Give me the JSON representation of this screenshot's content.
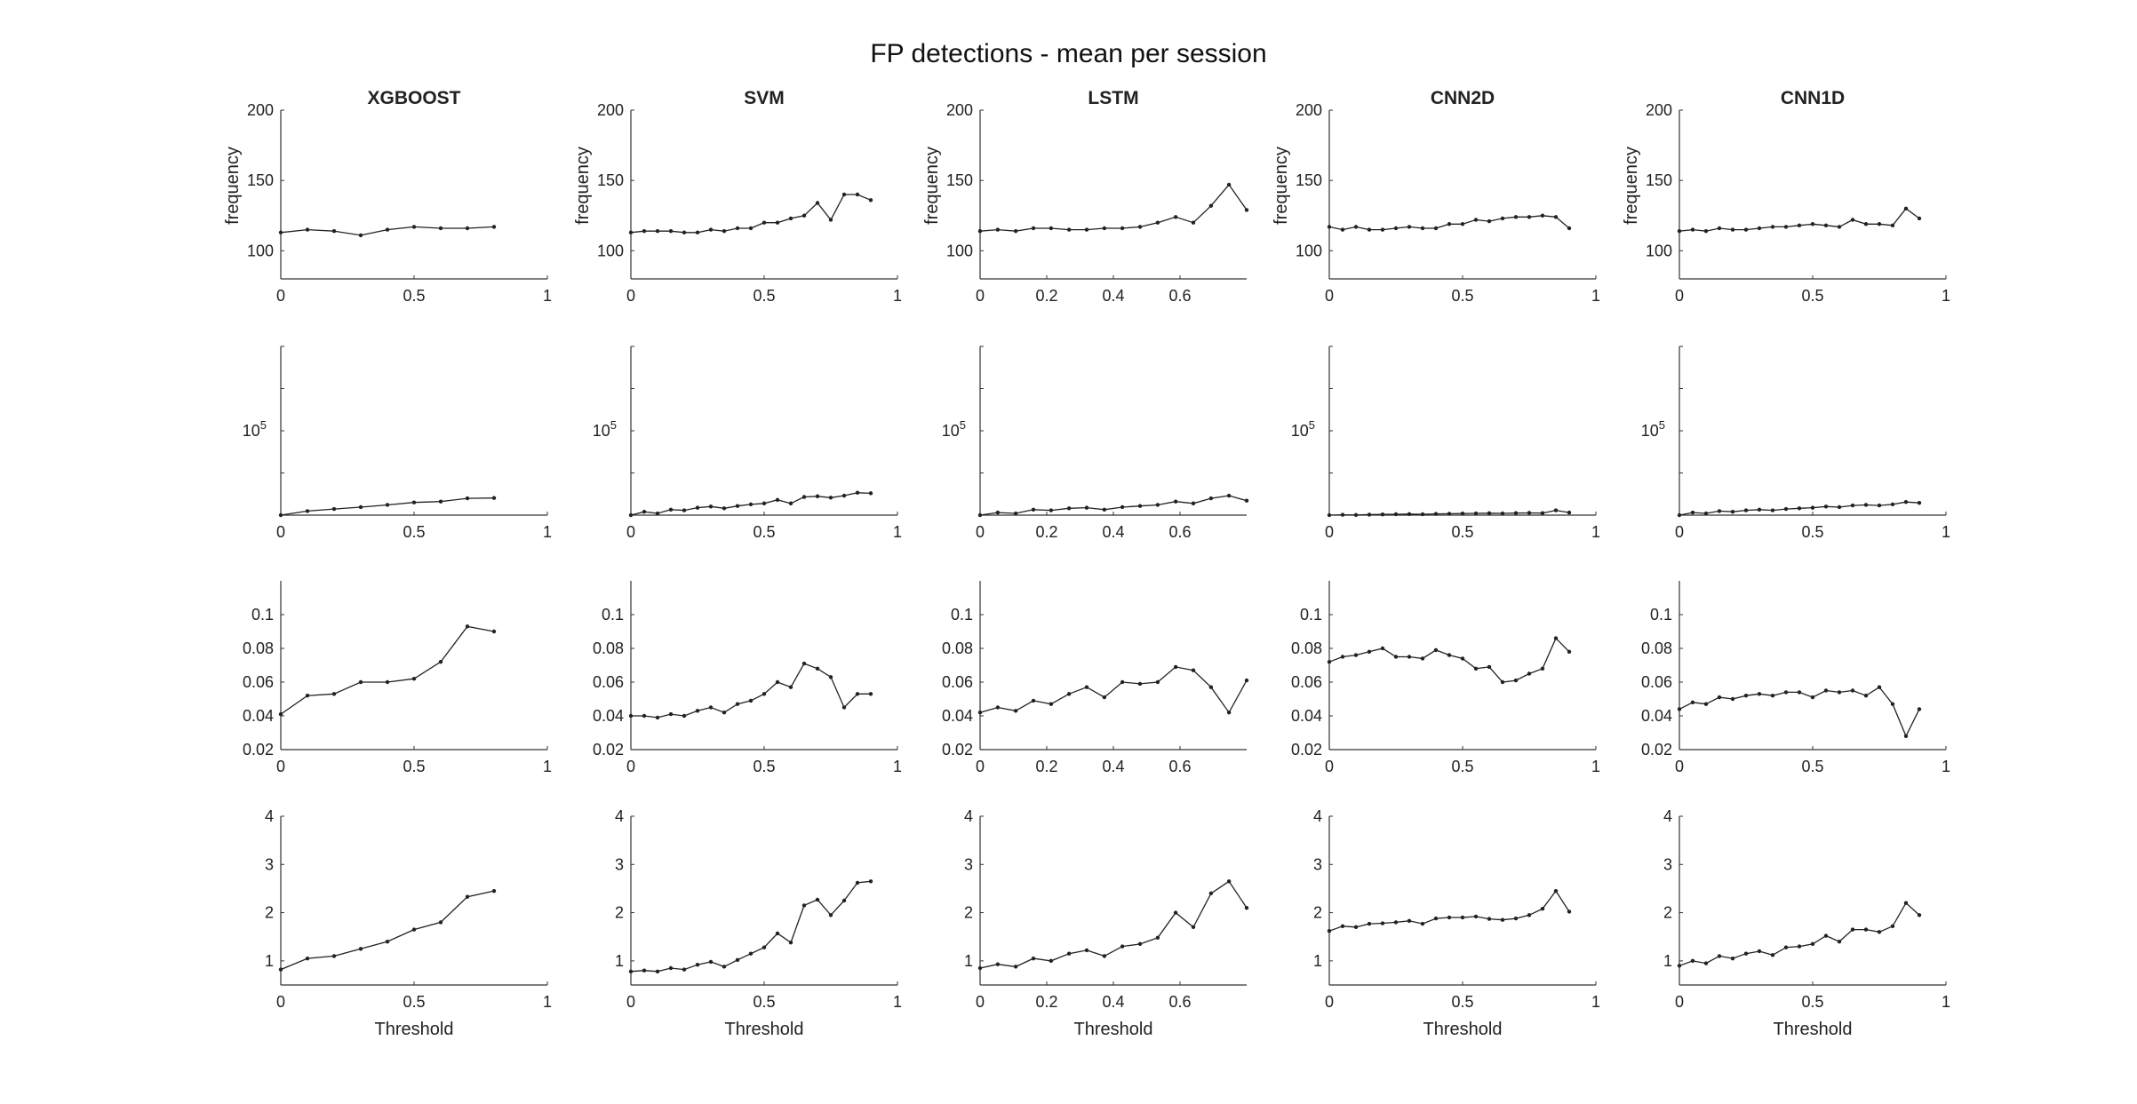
{
  "figure": {
    "title": "FP detections - mean per session"
  },
  "chart_data": {
    "type": "line",
    "title": "FP detections - mean per session",
    "columns": [
      "XGBOOST",
      "SVM",
      "LSTM",
      "CNN2D",
      "CNN1D"
    ],
    "rows": [
      {
        "ylabel": "frequency",
        "yscale": "linear",
        "ylim": [
          80,
          200
        ],
        "yticks": [
          "100",
          "150",
          "200"
        ],
        "xlabel": ""
      },
      {
        "ylabel": "",
        "yscale": "log",
        "ylim": [
          1000,
          10000000
        ],
        "yticks": [
          "10^5"
        ],
        "xlabel": ""
      },
      {
        "ylabel": "",
        "yscale": "linear",
        "ylim": [
          0.02,
          0.12
        ],
        "yticks": [
          "0.02",
          "0.04",
          "0.06",
          "0.08",
          "0.1"
        ],
        "xlabel": ""
      },
      {
        "ylabel": "",
        "yscale": "linear",
        "ylim": [
          0.5,
          4
        ],
        "yticks": [
          "1",
          "2",
          "3",
          "4"
        ],
        "xlabel": "Threshold"
      }
    ],
    "panels": [
      {
        "col": 0,
        "row": 0,
        "xlim": [
          0,
          1
        ],
        "xticks": [
          "0",
          "0.5",
          "1"
        ],
        "x": [
          0,
          0.1,
          0.2,
          0.3,
          0.4,
          0.5,
          0.6,
          0.7,
          0.8
        ],
        "y": [
          113,
          115,
          114,
          111,
          115,
          117,
          116,
          116,
          117
        ]
      },
      {
        "col": 0,
        "row": 1,
        "xlim": [
          0,
          1
        ],
        "xticks": [
          "0",
          "0.5",
          "1"
        ],
        "x": [
          0,
          0.1,
          0.2,
          0.3,
          0.4,
          0.5,
          0.6,
          0.7,
          0.8
        ],
        "y": [
          1000,
          1250,
          1400,
          1550,
          1750,
          2000,
          2100,
          2500,
          2550
        ]
      },
      {
        "col": 0,
        "row": 2,
        "xlim": [
          0,
          1
        ],
        "xticks": [
          "0",
          "0.5",
          "1"
        ],
        "x": [
          0,
          0.1,
          0.2,
          0.3,
          0.4,
          0.5,
          0.6,
          0.7,
          0.8
        ],
        "y": [
          0.041,
          0.052,
          0.053,
          0.06,
          0.06,
          0.062,
          0.072,
          0.093,
          0.09
        ]
      },
      {
        "col": 0,
        "row": 3,
        "xlim": [
          0,
          1
        ],
        "xticks": [
          "0",
          "0.5",
          "1"
        ],
        "x": [
          0,
          0.1,
          0.2,
          0.3,
          0.4,
          0.5,
          0.6,
          0.7,
          0.8
        ],
        "y": [
          0.82,
          1.05,
          1.1,
          1.25,
          1.4,
          1.65,
          1.8,
          2.33,
          2.45
        ]
      },
      {
        "col": 1,
        "row": 0,
        "xlim": [
          0,
          1
        ],
        "xticks": [
          "0",
          "0.5",
          "1"
        ],
        "x": [
          0,
          0.05,
          0.1,
          0.15,
          0.2,
          0.25,
          0.3,
          0.35,
          0.4,
          0.45,
          0.5,
          0.55,
          0.6,
          0.65,
          0.7,
          0.75,
          0.8,
          0.85,
          0.9
        ],
        "y": [
          113,
          114,
          114,
          114,
          113,
          113,
          115,
          114,
          116,
          116,
          120,
          120,
          123,
          125,
          134,
          122,
          140,
          140,
          136
        ]
      },
      {
        "col": 1,
        "row": 1,
        "xlim": [
          0,
          1
        ],
        "xticks": [
          "0",
          "0.5",
          "1"
        ],
        "x": [
          0,
          0.05,
          0.1,
          0.15,
          0.2,
          0.25,
          0.3,
          0.35,
          0.4,
          0.45,
          0.5,
          0.55,
          0.6,
          0.65,
          0.7,
          0.75,
          0.8,
          0.85,
          0.9
        ],
        "y": [
          1000,
          1200,
          1100,
          1350,
          1300,
          1500,
          1600,
          1450,
          1650,
          1800,
          1900,
          2300,
          1900,
          2700,
          2800,
          2600,
          2900,
          3400,
          3300
        ]
      },
      {
        "col": 1,
        "row": 2,
        "xlim": [
          0,
          1
        ],
        "xticks": [
          "0",
          "0.5",
          "1"
        ],
        "x": [
          0,
          0.05,
          0.1,
          0.15,
          0.2,
          0.25,
          0.3,
          0.35,
          0.4,
          0.45,
          0.5,
          0.55,
          0.6,
          0.65,
          0.7,
          0.75,
          0.8,
          0.85,
          0.9
        ],
        "y": [
          0.04,
          0.04,
          0.039,
          0.041,
          0.04,
          0.043,
          0.045,
          0.042,
          0.047,
          0.049,
          0.053,
          0.06,
          0.057,
          0.071,
          0.068,
          0.063,
          0.045,
          0.053,
          0.053
        ]
      },
      {
        "col": 1,
        "row": 3,
        "xlim": [
          0,
          1
        ],
        "xticks": [
          "0",
          "0.5",
          "1"
        ],
        "x": [
          0,
          0.05,
          0.1,
          0.15,
          0.2,
          0.25,
          0.3,
          0.35,
          0.4,
          0.45,
          0.5,
          0.55,
          0.6,
          0.65,
          0.7,
          0.75,
          0.8,
          0.85,
          0.9
        ],
        "y": [
          0.78,
          0.8,
          0.78,
          0.85,
          0.82,
          0.92,
          0.98,
          0.88,
          1.02,
          1.15,
          1.28,
          1.57,
          1.38,
          2.15,
          2.27,
          1.95,
          2.25,
          2.62,
          2.65
        ]
      },
      {
        "col": 2,
        "row": 0,
        "xlim": [
          0,
          0.8
        ],
        "xticks": [
          "0",
          "0.2",
          "0.4",
          "0.6"
        ],
        "x": [
          0,
          0.053,
          0.107,
          0.16,
          0.213,
          0.267,
          0.32,
          0.373,
          0.427,
          0.48,
          0.533,
          0.587,
          0.64,
          0.693,
          0.747,
          0.8
        ],
        "y": [
          114,
          115,
          114,
          116,
          116,
          115,
          115,
          116,
          116,
          117,
          120,
          124,
          120,
          132,
          147,
          129
        ]
      },
      {
        "col": 2,
        "row": 1,
        "xlim": [
          0,
          0.8
        ],
        "xticks": [
          "0",
          "0.2",
          "0.4",
          "0.6"
        ],
        "x": [
          0,
          0.053,
          0.107,
          0.16,
          0.213,
          0.267,
          0.32,
          0.373,
          0.427,
          0.48,
          0.533,
          0.587,
          0.64,
          0.693,
          0.747,
          0.8
        ],
        "y": [
          1000,
          1150,
          1100,
          1350,
          1300,
          1450,
          1500,
          1350,
          1550,
          1650,
          1750,
          2100,
          1900,
          2500,
          2900,
          2200
        ]
      },
      {
        "col": 2,
        "row": 2,
        "xlim": [
          0,
          0.8
        ],
        "xticks": [
          "0",
          "0.2",
          "0.4",
          "0.6"
        ],
        "x": [
          0,
          0.053,
          0.107,
          0.16,
          0.213,
          0.267,
          0.32,
          0.373,
          0.427,
          0.48,
          0.533,
          0.587,
          0.64,
          0.693,
          0.747,
          0.8
        ],
        "y": [
          0.042,
          0.045,
          0.043,
          0.049,
          0.047,
          0.053,
          0.057,
          0.051,
          0.06,
          0.059,
          0.06,
          0.069,
          0.067,
          0.057,
          0.042,
          0.061
        ]
      },
      {
        "col": 2,
        "row": 3,
        "xlim": [
          0,
          0.8
        ],
        "xticks": [
          "0",
          "0.2",
          "0.4",
          "0.6"
        ],
        "x": [
          0,
          0.053,
          0.107,
          0.16,
          0.213,
          0.267,
          0.32,
          0.373,
          0.427,
          0.48,
          0.533,
          0.587,
          0.64,
          0.693,
          0.747,
          0.8
        ],
        "y": [
          0.85,
          0.93,
          0.88,
          1.05,
          1.0,
          1.15,
          1.22,
          1.1,
          1.3,
          1.35,
          1.48,
          2.0,
          1.7,
          2.4,
          2.65,
          2.1
        ]
      },
      {
        "col": 3,
        "row": 0,
        "xlim": [
          0,
          1
        ],
        "xticks": [
          "0",
          "0.5",
          "1"
        ],
        "x": [
          0,
          0.05,
          0.1,
          0.15,
          0.2,
          0.25,
          0.3,
          0.35,
          0.4,
          0.45,
          0.5,
          0.55,
          0.6,
          0.65,
          0.7,
          0.75,
          0.8,
          0.85,
          0.9
        ],
        "y": [
          117,
          115,
          117,
          115,
          115,
          116,
          117,
          116,
          116,
          119,
          119,
          122,
          121,
          123,
          124,
          124,
          125,
          124,
          116
        ]
      },
      {
        "col": 3,
        "row": 1,
        "xlim": [
          0,
          1
        ],
        "xticks": [
          "0",
          "0.5",
          "1"
        ],
        "x": [
          0,
          0.05,
          0.1,
          0.15,
          0.2,
          0.25,
          0.3,
          0.35,
          0.4,
          0.45,
          0.5,
          0.55,
          0.6,
          0.65,
          0.7,
          0.75,
          0.8,
          0.85,
          0.9
        ],
        "y": [
          1000,
          1020,
          1010,
          1030,
          1040,
          1050,
          1060,
          1050,
          1070,
          1080,
          1090,
          1100,
          1110,
          1100,
          1120,
          1130,
          1120,
          1300,
          1150
        ]
      },
      {
        "col": 3,
        "row": 2,
        "xlim": [
          0,
          1
        ],
        "xticks": [
          "0",
          "0.5",
          "1"
        ],
        "x": [
          0,
          0.05,
          0.1,
          0.15,
          0.2,
          0.25,
          0.3,
          0.35,
          0.4,
          0.45,
          0.5,
          0.55,
          0.6,
          0.65,
          0.7,
          0.75,
          0.8,
          0.85,
          0.9
        ],
        "y": [
          0.072,
          0.075,
          0.076,
          0.078,
          0.08,
          0.075,
          0.075,
          0.074,
          0.079,
          0.076,
          0.074,
          0.068,
          0.069,
          0.06,
          0.061,
          0.065,
          0.068,
          0.086,
          0.078
        ]
      },
      {
        "col": 3,
        "row": 3,
        "xlim": [
          0,
          1
        ],
        "xticks": [
          "0",
          "0.5",
          "1"
        ],
        "x": [
          0,
          0.05,
          0.1,
          0.15,
          0.2,
          0.25,
          0.3,
          0.35,
          0.4,
          0.45,
          0.5,
          0.55,
          0.6,
          0.65,
          0.7,
          0.75,
          0.8,
          0.85,
          0.9
        ],
        "y": [
          1.62,
          1.72,
          1.7,
          1.77,
          1.78,
          1.8,
          1.83,
          1.77,
          1.88,
          1.9,
          1.9,
          1.92,
          1.87,
          1.85,
          1.88,
          1.95,
          2.08,
          2.45,
          2.02
        ]
      },
      {
        "col": 4,
        "row": 0,
        "xlim": [
          0,
          1
        ],
        "xticks": [
          "0",
          "0.5",
          "1"
        ],
        "x": [
          0,
          0.05,
          0.1,
          0.15,
          0.2,
          0.25,
          0.3,
          0.35,
          0.4,
          0.45,
          0.5,
          0.55,
          0.6,
          0.65,
          0.7,
          0.75,
          0.8,
          0.85,
          0.9
        ],
        "y": [
          114,
          115,
          114,
          116,
          115,
          115,
          116,
          117,
          117,
          118,
          119,
          118,
          117,
          122,
          119,
          119,
          118,
          130,
          123
        ]
      },
      {
        "col": 4,
        "row": 1,
        "xlim": [
          0,
          1
        ],
        "xticks": [
          "0",
          "0.5",
          "1"
        ],
        "x": [
          0,
          0.05,
          0.1,
          0.15,
          0.2,
          0.25,
          0.3,
          0.35,
          0.4,
          0.45,
          0.5,
          0.55,
          0.6,
          0.65,
          0.7,
          0.75,
          0.8,
          0.85,
          0.9
        ],
        "y": [
          1000,
          1150,
          1100,
          1250,
          1200,
          1300,
          1350,
          1300,
          1400,
          1450,
          1500,
          1600,
          1550,
          1700,
          1750,
          1700,
          1800,
          2050,
          1950
        ]
      },
      {
        "col": 4,
        "row": 2,
        "xlim": [
          0,
          1
        ],
        "xticks": [
          "0",
          "0.5",
          "1"
        ],
        "x": [
          0,
          0.05,
          0.1,
          0.15,
          0.2,
          0.25,
          0.3,
          0.35,
          0.4,
          0.45,
          0.5,
          0.55,
          0.6,
          0.65,
          0.7,
          0.75,
          0.8,
          0.85,
          0.9
        ],
        "y": [
          0.044,
          0.048,
          0.047,
          0.051,
          0.05,
          0.052,
          0.053,
          0.052,
          0.054,
          0.054,
          0.051,
          0.055,
          0.054,
          0.055,
          0.052,
          0.057,
          0.047,
          0.028,
          0.044
        ]
      },
      {
        "col": 4,
        "row": 3,
        "xlim": [
          0,
          1
        ],
        "xticks": [
          "0",
          "0.5",
          "1"
        ],
        "x": [
          0,
          0.05,
          0.1,
          0.15,
          0.2,
          0.25,
          0.3,
          0.35,
          0.4,
          0.45,
          0.5,
          0.55,
          0.6,
          0.65,
          0.7,
          0.75,
          0.8,
          0.85,
          0.9
        ],
        "y": [
          0.9,
          1.0,
          0.95,
          1.1,
          1.05,
          1.15,
          1.2,
          1.12,
          1.28,
          1.3,
          1.35,
          1.52,
          1.4,
          1.65,
          1.65,
          1.6,
          1.72,
          2.2,
          1.95
        ]
      }
    ]
  }
}
